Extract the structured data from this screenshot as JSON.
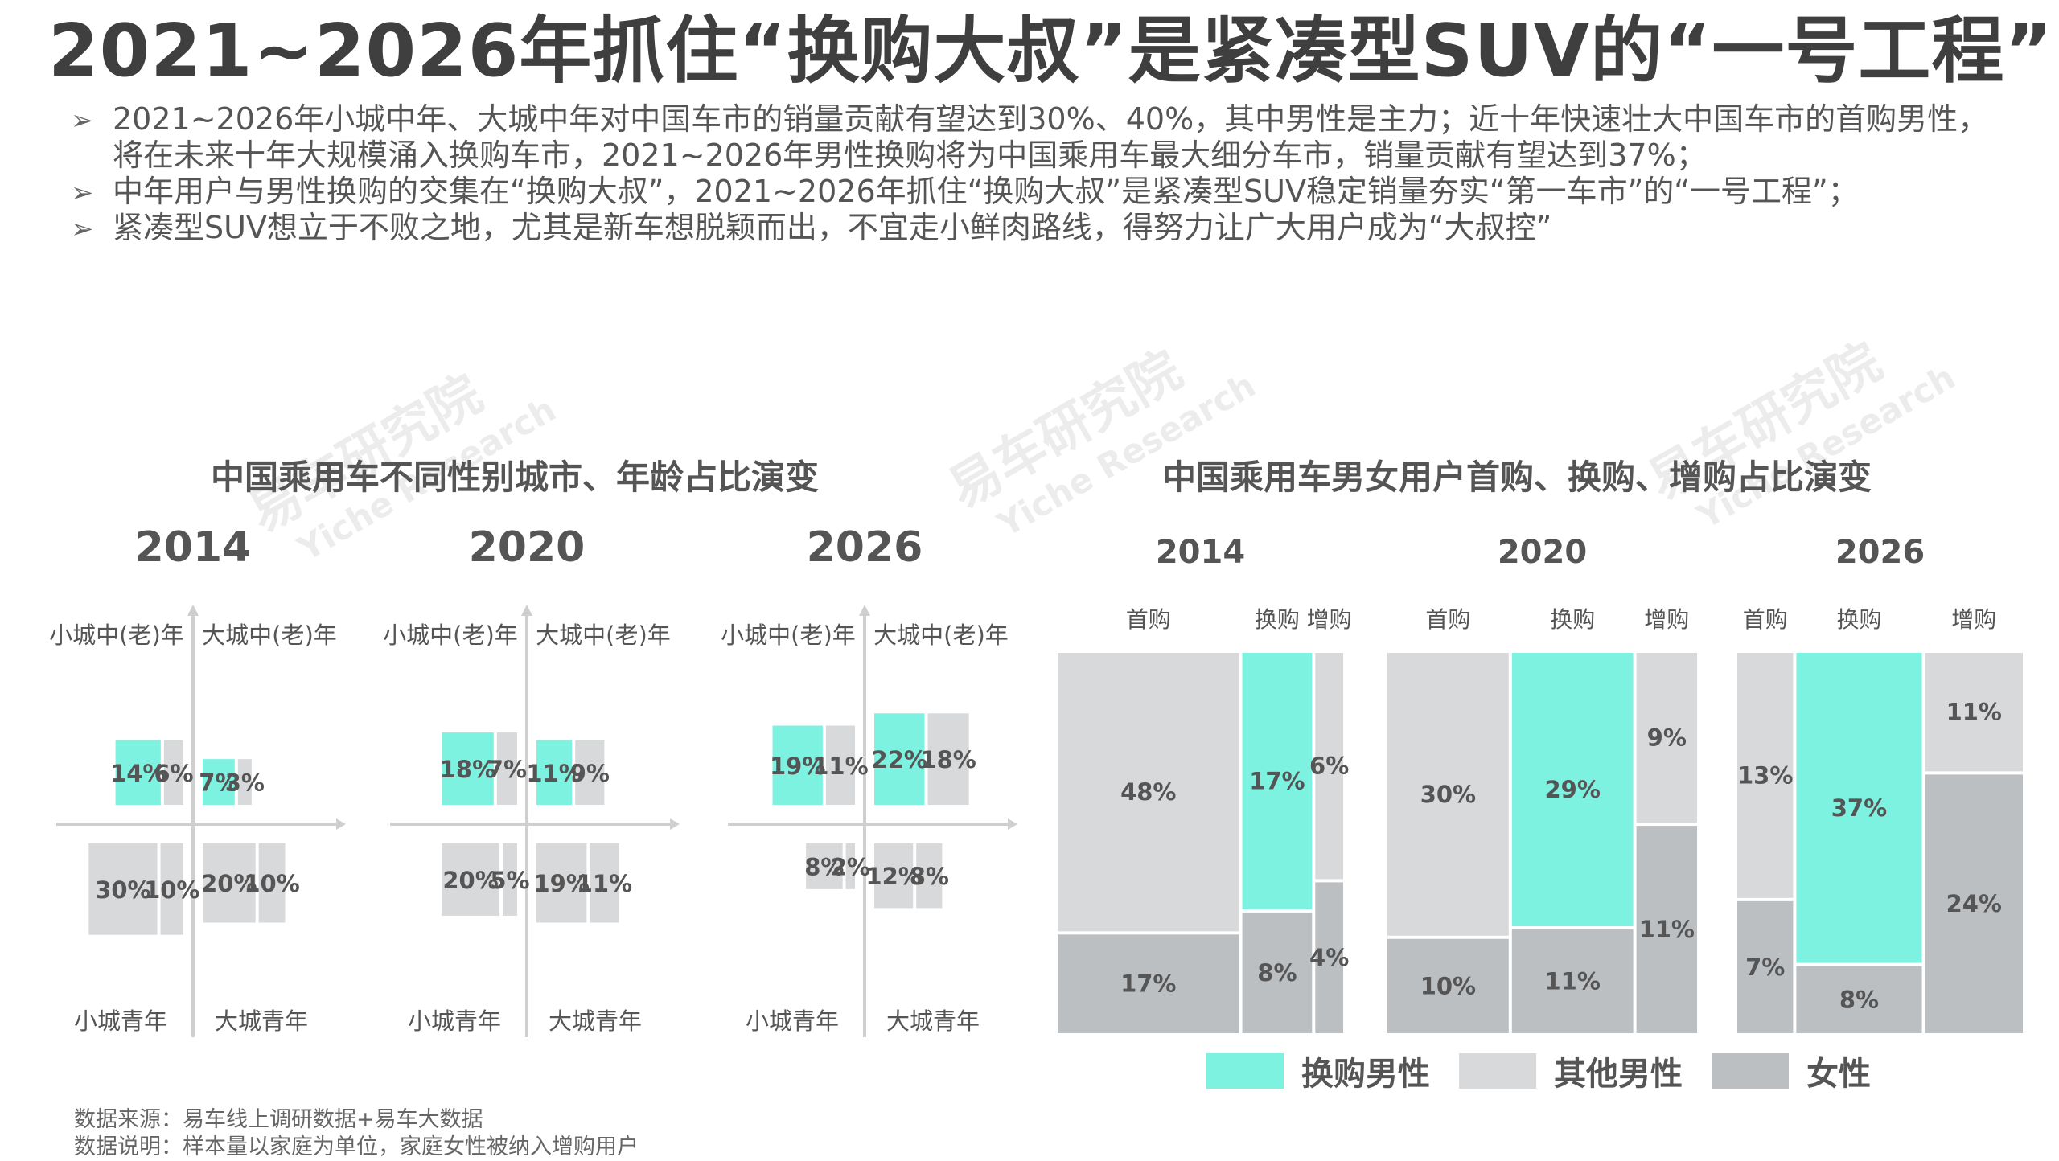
{
  "title": "2021~2026年抓住“换购大叔”是紧凑型SUV的“一号工程”",
  "bullets": [
    "2021~2026年小城中年、大城中年对中国车市的销量贡献有望达到30%、40%，其中男性是主力；近十年快速壮大中国车市的首购男性，将在未来十年大规模涌入换购车市，2021~2026年男性换购将为中国乘用车最大细分车市，销量贡献有望达到37%；",
    "中年用户与男性换购的交集在“换购大叔”，2021~2026年抓住“换购大叔”是紧凑型SUV稳定销量夯实“第一车市”的“一号工程”；",
    "紧凑型SUV想立于不败之地，尤其是新车想脱颖而出，不宜走小鲜肉路线，得努力让广大用户成为“大叔控”"
  ],
  "bullet_icon": "arrow-bullet-icon",
  "left_section_title": "中国乘用车不同性别城市、年龄占比演变",
  "right_section_title": "中国乘用车男女用户首购、换购、增购占比演变",
  "watermark": {
    "cn": "易车研究院",
    "en": "Yiche Research"
  },
  "colors": {
    "male_replacement": "#7ef2e0",
    "other_male": "#d8d9db",
    "female": "#bcbfc2"
  },
  "legend": [
    {
      "label": "换购男性",
      "color": "#7ef2e0"
    },
    {
      "label": "其他男性",
      "color": "#d8d9db"
    },
    {
      "label": "女性",
      "color": "#bcbfc2"
    }
  ],
  "notes": [
    "数据来源：易车线上调研数据+易车大数据",
    "数据说明：样本量以家庭为单位，家庭女性被纳入增购用户"
  ],
  "chart_data": [
    {
      "type": "bar",
      "subtype": "quadrant",
      "title": "中国乘用车不同性别城市、年龄占比演变",
      "quadrant_labels": {
        "top_left": "小城中(老)年",
        "top_right": "大城中(老)年",
        "bottom_left": "小城青年",
        "bottom_right": "大城青年"
      },
      "panels": [
        {
          "year": "2014",
          "top_left": {
            "a": 14,
            "b": 6
          },
          "top_right": {
            "a": 7,
            "b": 3
          },
          "bottom_left": {
            "a": 30,
            "b": 10
          },
          "bottom_right": {
            "a": 20,
            "b": 10
          }
        },
        {
          "year": "2020",
          "top_left": {
            "a": 18,
            "b": 7
          },
          "top_right": {
            "a": 11,
            "b": 9
          },
          "bottom_left": {
            "a": 20,
            "b": 5
          },
          "bottom_right": {
            "a": 19,
            "b": 11
          }
        },
        {
          "year": "2026",
          "top_left": {
            "a": 19,
            "b": 11
          },
          "top_right": {
            "a": 22,
            "b": 18
          },
          "bottom_left": {
            "a": 8,
            "b": 2
          },
          "bottom_right": {
            "a": 12,
            "b": 8
          }
        }
      ]
    },
    {
      "type": "bar",
      "subtype": "mekko",
      "title": "中国乘用车男女用户首购、换购、增购占比演变",
      "categories": [
        "首购",
        "换购",
        "增购"
      ],
      "panels": [
        {
          "year": "2014",
          "columns": [
            {
              "category": "首购",
              "segments": [
                {
                  "value": 48,
                  "series": "其他男性"
                },
                {
                  "value": 17,
                  "series": "女性"
                }
              ]
            },
            {
              "category": "换购",
              "segments": [
                {
                  "value": 17,
                  "series": "换购男性"
                },
                {
                  "value": 8,
                  "series": "女性"
                }
              ]
            },
            {
              "category": "增购",
              "segments": [
                {
                  "value": 6,
                  "series": "其他男性"
                },
                {
                  "value": 4,
                  "series": "女性"
                }
              ]
            }
          ]
        },
        {
          "year": "2020",
          "columns": [
            {
              "category": "首购",
              "segments": [
                {
                  "value": 30,
                  "series": "其他男性"
                },
                {
                  "value": 10,
                  "series": "女性"
                }
              ]
            },
            {
              "category": "换购",
              "segments": [
                {
                  "value": 29,
                  "series": "换购男性"
                },
                {
                  "value": 11,
                  "series": "女性"
                }
              ]
            },
            {
              "category": "增购",
              "segments": [
                {
                  "value": 9,
                  "series": "其他男性"
                },
                {
                  "value": 11,
                  "series": "女性"
                }
              ]
            }
          ]
        },
        {
          "year": "2026",
          "columns": [
            {
              "category": "首购",
              "segments": [
                {
                  "value": 13,
                  "series": "其他男性"
                },
                {
                  "value": 7,
                  "series": "女性"
                }
              ]
            },
            {
              "category": "换购",
              "segments": [
                {
                  "value": 37,
                  "series": "换购男性"
                },
                {
                  "value": 8,
                  "series": "女性"
                }
              ]
            },
            {
              "category": "增购",
              "segments": [
                {
                  "value": 11,
                  "series": "其他男性"
                },
                {
                  "value": 24,
                  "series": "女性"
                }
              ]
            }
          ]
        }
      ],
      "legend": [
        "换购男性",
        "其他男性",
        "女性"
      ],
      "legend_position": "bottom"
    }
  ]
}
